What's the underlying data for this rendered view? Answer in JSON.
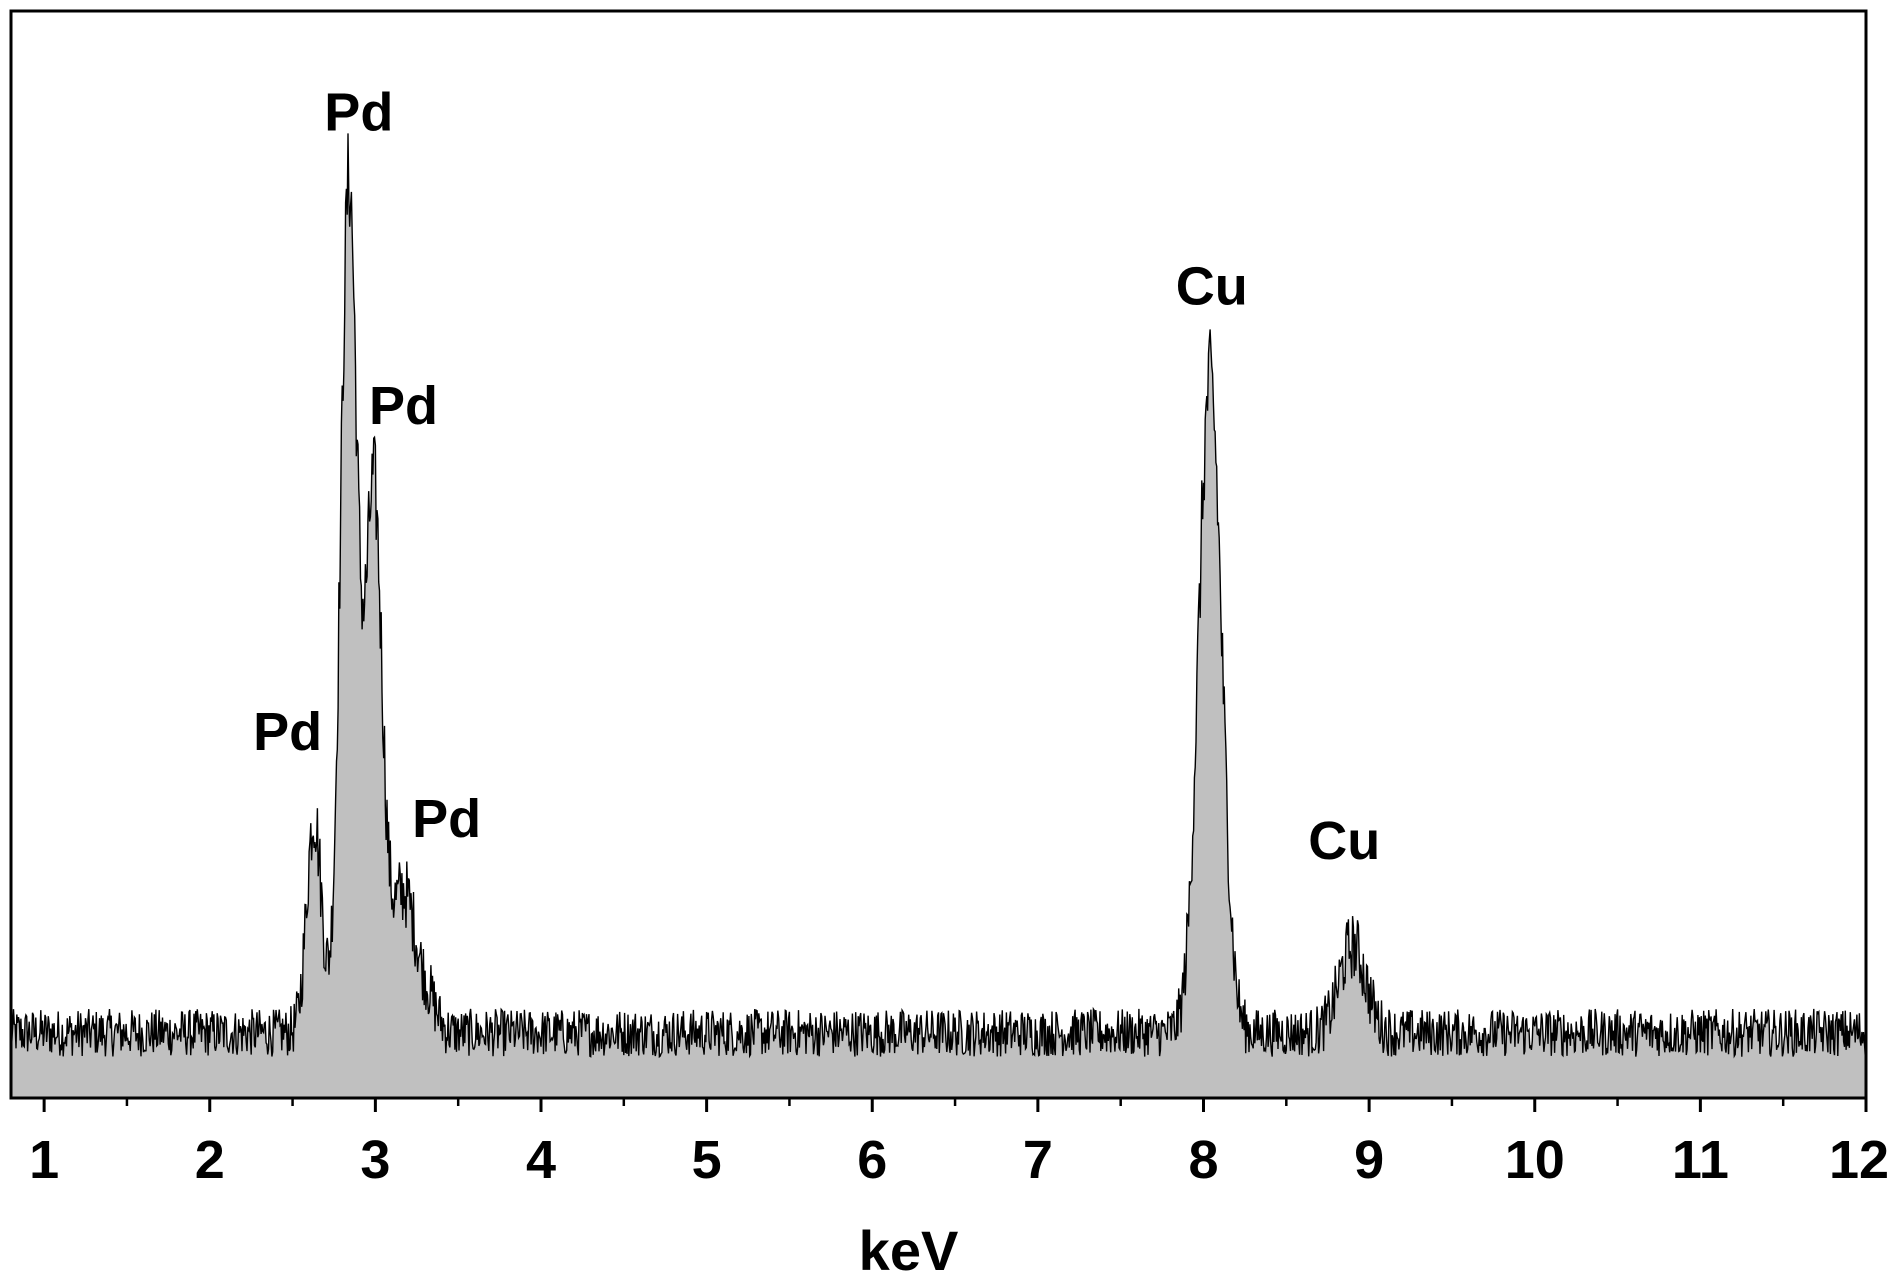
{
  "chart_data": {
    "type": "area",
    "title": "",
    "xlabel": "keV",
    "ylabel": "",
    "xlim": [
      0.8,
      12
    ],
    "ylim": [
      0,
      100
    ],
    "x_ticks": [
      1,
      2,
      3,
      4,
      5,
      6,
      7,
      8,
      9,
      10,
      11,
      12
    ],
    "x_tick_labels": [
      "1",
      "2",
      "3",
      "4",
      "5",
      "6",
      "7",
      "8",
      "9",
      "10",
      "11",
      "12"
    ],
    "y_axis_labels_shown": false,
    "grid": false,
    "legend": "none",
    "colors": {
      "fill": "#c0c0c0",
      "line": "#000000",
      "frame": "#000000"
    },
    "baseline_level": 6,
    "noise_amplitude": 2.2,
    "peaks": [
      {
        "element": "Pd",
        "x": 2.63,
        "y": 26,
        "width": 0.045
      },
      {
        "element": "Pd",
        "x": 2.84,
        "y": 84,
        "width": 0.05
      },
      {
        "element": "Pd",
        "x": 2.99,
        "y": 55,
        "width": 0.05
      },
      {
        "element": "Pd",
        "x": 3.17,
        "y": 19,
        "width": 0.08
      },
      {
        "element": "Pd",
        "x": 3.33,
        "y": 8,
        "width": 0.05
      },
      {
        "element": "Cu",
        "x": 8.04,
        "y": 66,
        "width": 0.07
      },
      {
        "element": "Cu",
        "x": 8.9,
        "y": 14,
        "width": 0.08
      }
    ],
    "annotations": [
      {
        "text": "Pd",
        "x": 2.9,
        "y": 89
      },
      {
        "text": "Pd",
        "x": 3.17,
        "y": 62
      },
      {
        "text": "Pd",
        "x": 2.47,
        "y": 32
      },
      {
        "text": "Pd",
        "x": 3.43,
        "y": 24
      },
      {
        "text": "Cu",
        "x": 8.05,
        "y": 73
      },
      {
        "text": "Cu",
        "x": 8.85,
        "y": 22
      }
    ]
  }
}
